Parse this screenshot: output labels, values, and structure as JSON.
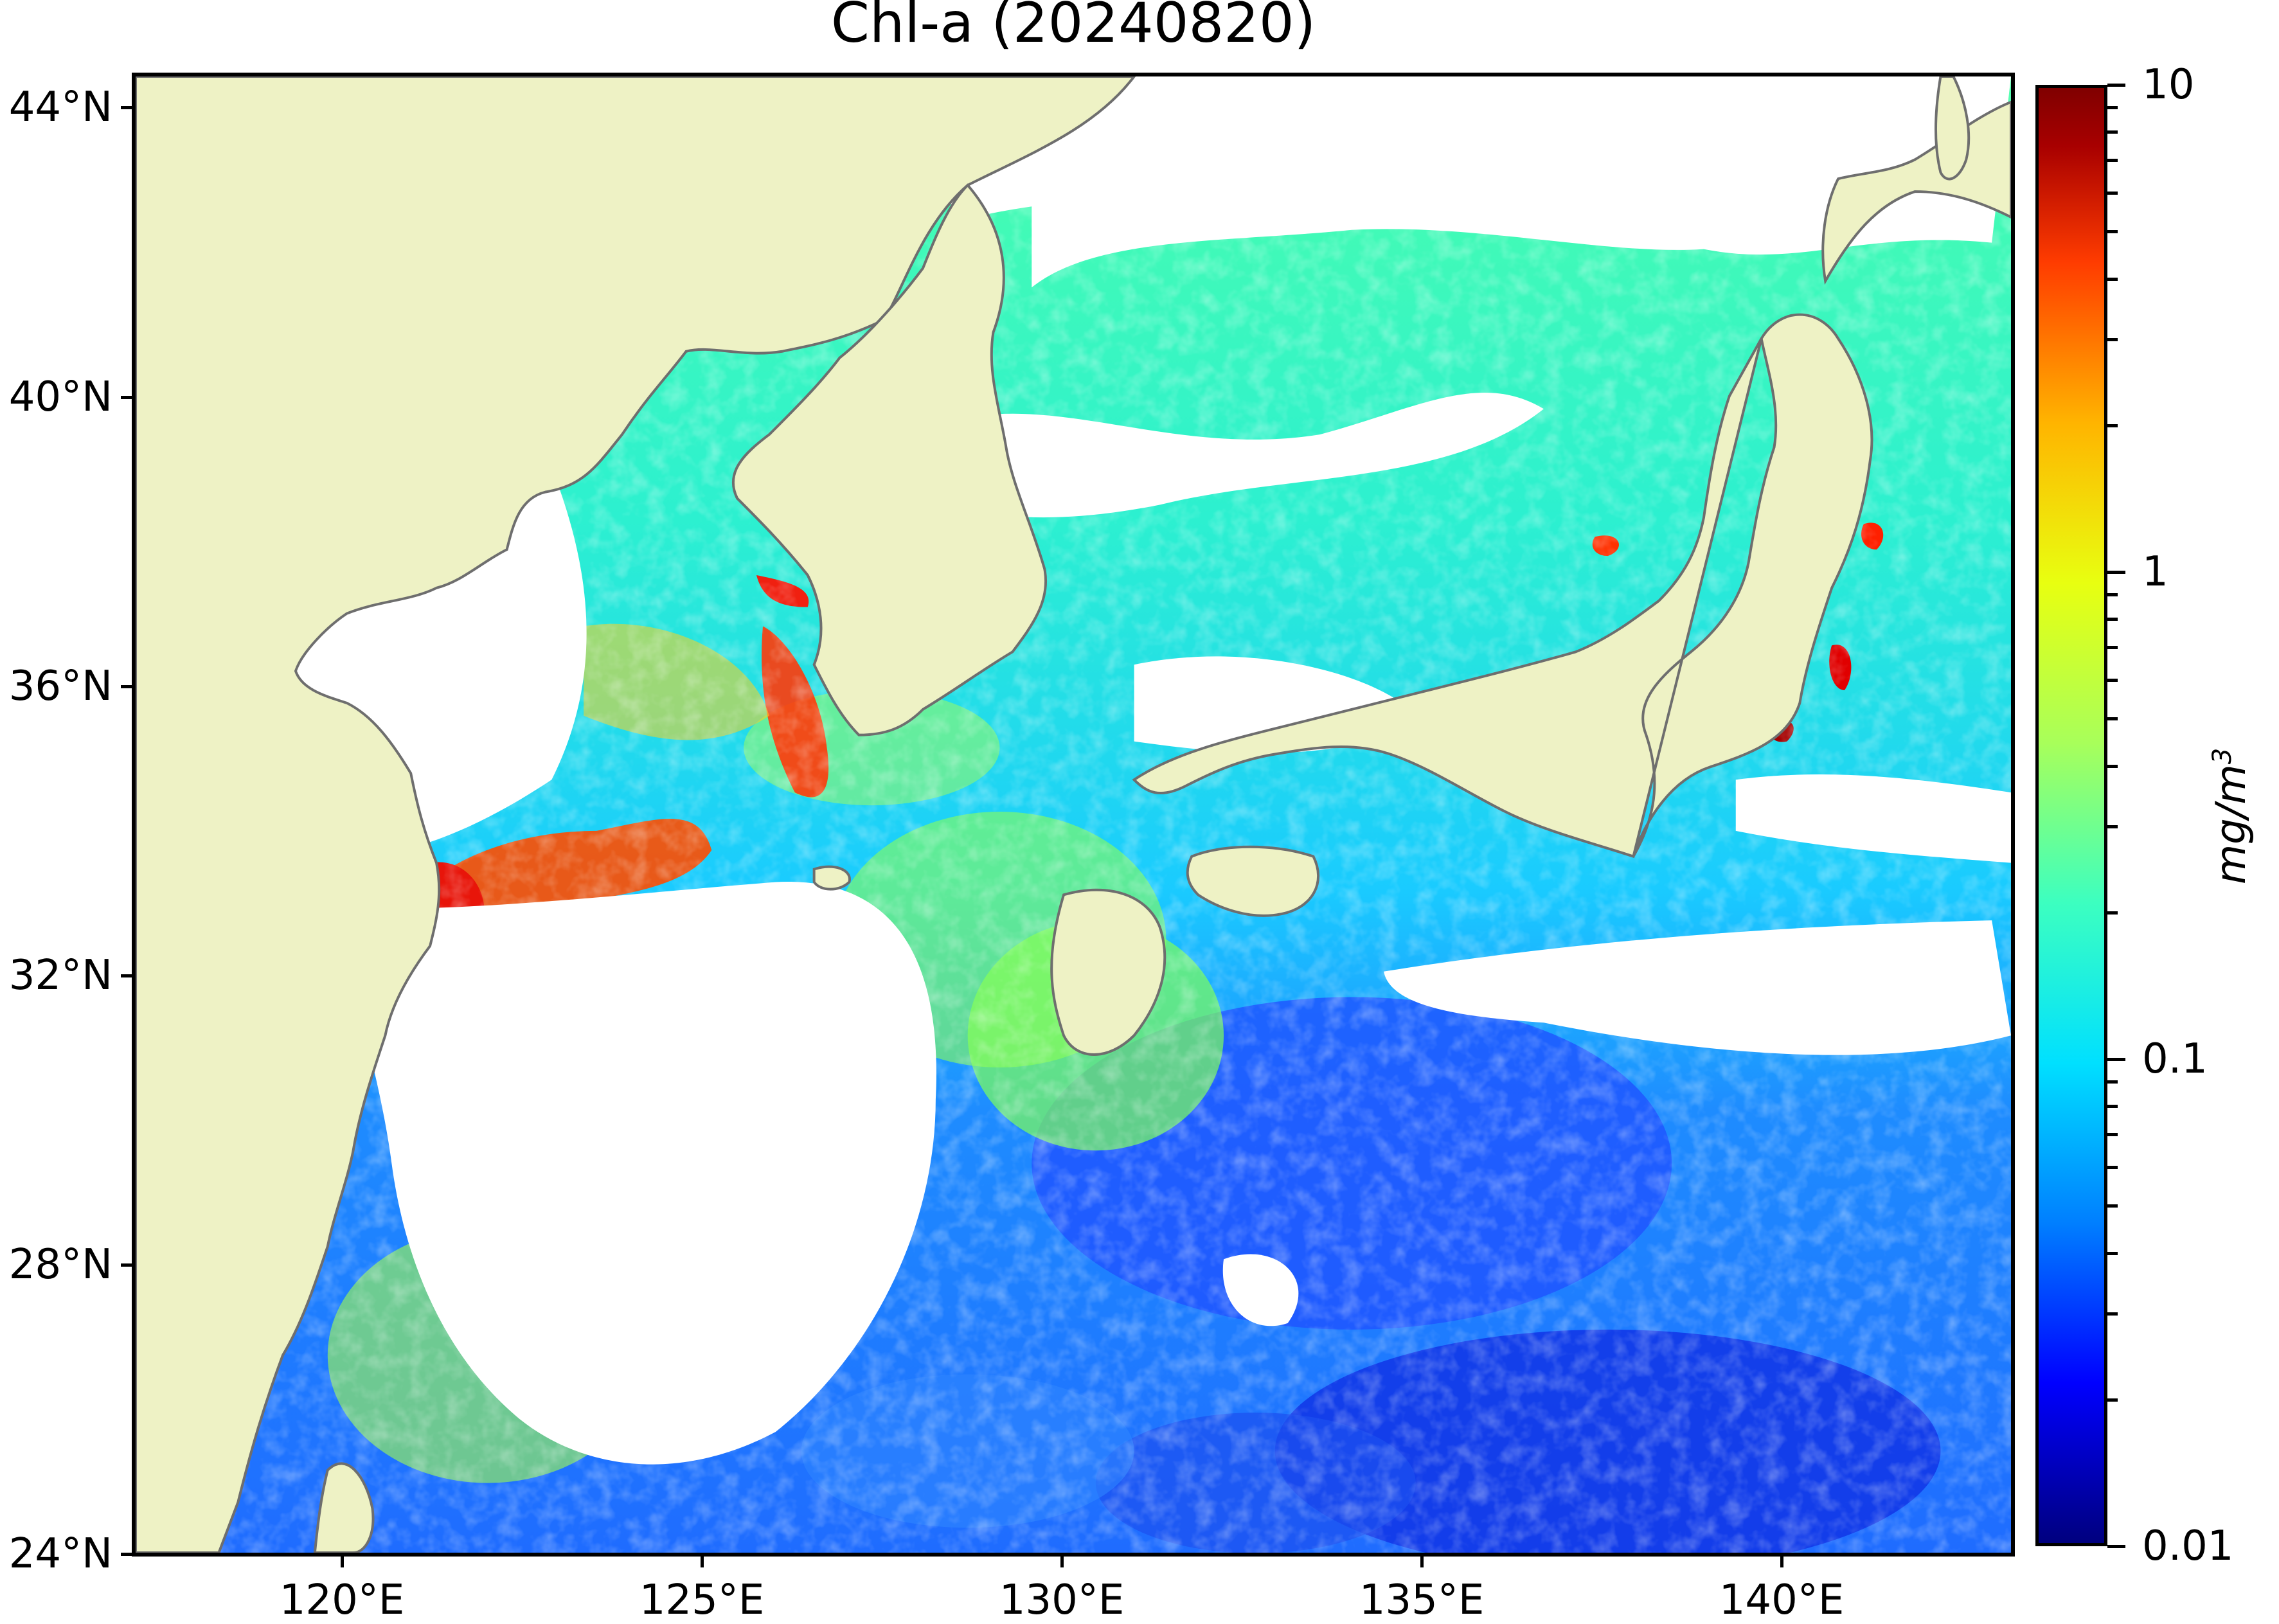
{
  "title": "Chl-a (20240820)",
  "map": {
    "projection": "PlateCarree",
    "lon_range": [
      116.8,
      143.2
    ],
    "lat_range": [
      24.0,
      44.5
    ],
    "colors": {
      "land": "#eef2c5",
      "coastline": "#6e6e6e",
      "no_data": "#ffffff"
    },
    "lat_ticks": [
      {
        "value": 44,
        "label": "44°N"
      },
      {
        "value": 40,
        "label": "40°N"
      },
      {
        "value": 36,
        "label": "36°N"
      },
      {
        "value": 32,
        "label": "32°N"
      },
      {
        "value": 28,
        "label": "28°N"
      },
      {
        "value": 24,
        "label": "24°N"
      }
    ],
    "lon_ticks": [
      {
        "value": 120,
        "label": "120°E"
      },
      {
        "value": 125,
        "label": "125°E"
      },
      {
        "value": 130,
        "label": "130°E"
      },
      {
        "value": 135,
        "label": "135°E"
      },
      {
        "value": 140,
        "label": "140°E"
      }
    ]
  },
  "colorbar": {
    "scale": "log",
    "range": [
      0.01,
      10
    ],
    "colormap": "jet",
    "unit_prefix": "mg/m",
    "unit_exp": "3",
    "major_ticks": [
      {
        "value": 10,
        "label": "10"
      },
      {
        "value": 1,
        "label": "1"
      },
      {
        "value": 0.1,
        "label": "0.1"
      },
      {
        "value": 0.01,
        "label": "0.01"
      }
    ],
    "minor_ticks": [
      9,
      8,
      7,
      6,
      5,
      4,
      3,
      2,
      0.9,
      0.8,
      0.7,
      0.6,
      0.5,
      0.4,
      0.3,
      0.2,
      0.09,
      0.08,
      0.07,
      0.06,
      0.05,
      0.04,
      0.03,
      0.02
    ]
  }
}
